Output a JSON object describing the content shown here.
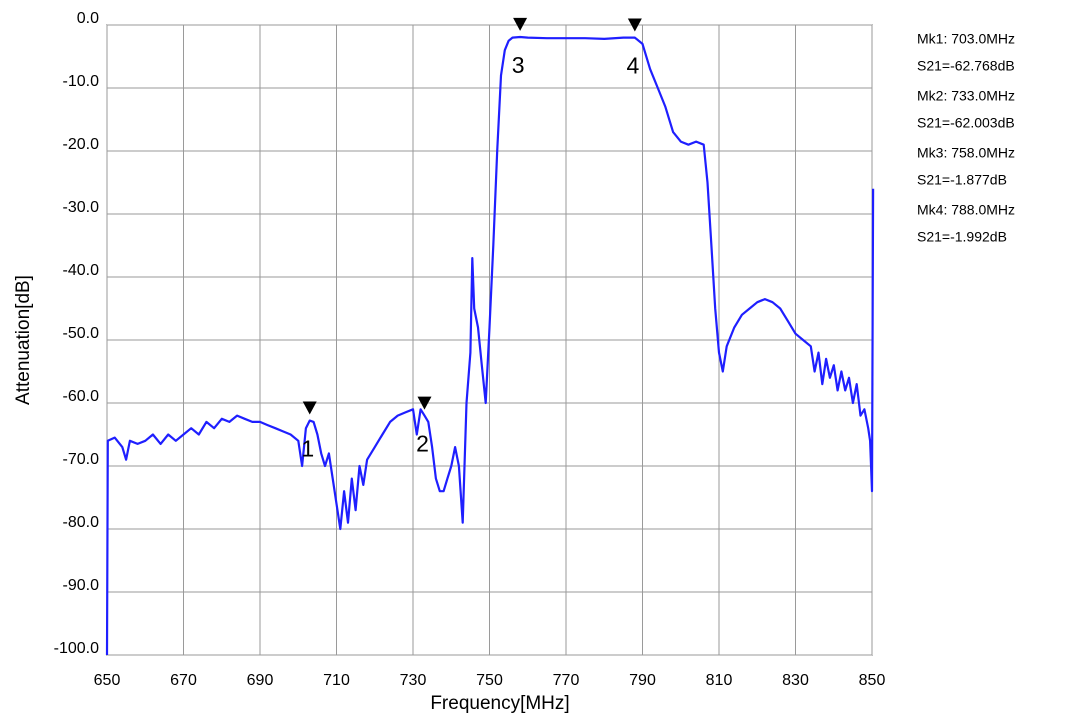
{
  "chart_data": {
    "type": "line",
    "xlabel": "Frequency[MHz]",
    "ylabel": "Attenuation[dB]",
    "xlim": [
      650,
      850
    ],
    "ylim": [
      -100,
      0
    ],
    "xticks": [
      650,
      670,
      690,
      710,
      730,
      750,
      770,
      790,
      810,
      830,
      850
    ],
    "yticks": [
      {
        "value": 0,
        "label": "0.0"
      },
      {
        "value": -10,
        "label": "-10.0"
      },
      {
        "value": -20,
        "label": "-20.0"
      },
      {
        "value": -30,
        "label": "-30.0"
      },
      {
        "value": -40,
        "label": "-40.0"
      },
      {
        "value": -50,
        "label": "-50.0"
      },
      {
        "value": -60,
        "label": "-60.0"
      },
      {
        "value": -70,
        "label": "-70.0"
      },
      {
        "value": -80,
        "label": "-80.0"
      },
      {
        "value": -90,
        "label": "-90.0"
      },
      {
        "value": -100,
        "label": "-100.0"
      }
    ],
    "grid": true,
    "x": [
      650,
      650.2,
      652,
      654,
      655,
      656,
      658,
      660,
      662,
      664,
      666,
      668,
      670,
      672,
      674,
      676,
      678,
      680,
      682,
      684,
      686,
      688,
      690,
      692,
      694,
      696,
      698,
      700,
      701,
      702,
      703,
      704,
      705,
      706,
      707,
      708,
      709,
      710,
      711,
      712,
      713,
      714,
      715,
      716,
      717,
      718,
      720,
      722,
      724,
      726,
      728,
      730,
      731,
      732,
      733,
      734,
      735,
      736,
      737,
      738,
      739,
      740,
      741,
      742,
      743,
      744,
      745,
      745.5,
      746,
      747,
      748,
      749,
      750,
      751,
      752,
      753,
      754,
      755,
      756,
      758,
      760,
      765,
      770,
      775,
      780,
      785,
      788,
      790,
      792,
      794,
      796,
      798,
      800,
      802,
      804,
      806,
      807,
      808,
      809,
      810,
      811,
      812,
      814,
      816,
      818,
      820,
      822,
      824,
      826,
      828,
      830,
      832,
      834,
      835,
      836,
      837,
      838,
      839,
      840,
      841,
      842,
      843,
      844,
      845,
      846,
      847,
      848,
      849,
      849.5,
      850,
      850.3
    ],
    "series": [
      {
        "name": "S21",
        "color": "#1f1fff",
        "values": [
          -100,
          -66,
          -65.5,
          -67,
          -69,
          -66,
          -66.5,
          -66,
          -65,
          -66.5,
          -65,
          -66,
          -65,
          -64,
          -65,
          -63,
          -64,
          -62.5,
          -63,
          -62,
          -62.5,
          -63,
          -63,
          -63.5,
          -64,
          -64.5,
          -65,
          -66,
          -70,
          -64,
          -62.8,
          -63,
          -65,
          -68,
          -70,
          -68,
          -72,
          -76,
          -80,
          -74,
          -79,
          -72,
          -77,
          -70,
          -73,
          -69,
          -67,
          -65,
          -63,
          -62,
          -61.5,
          -61,
          -65,
          -61,
          -62,
          -63,
          -67,
          -72,
          -74,
          -74,
          -72,
          -70,
          -67,
          -70,
          -79,
          -60,
          -52,
          -37,
          -45,
          -48,
          -54,
          -60,
          -48,
          -35,
          -20,
          -8,
          -4,
          -2.5,
          -2,
          -1.9,
          -2,
          -2.1,
          -2.1,
          -2.1,
          -2.2,
          -2,
          -2,
          -3,
          -7,
          -10,
          -13,
          -17,
          -18.5,
          -19,
          -18.5,
          -19,
          -25,
          -35,
          -45,
          -52,
          -55,
          -51,
          -48,
          -46,
          -45,
          -44,
          -43.5,
          -44,
          -45,
          -47,
          -49,
          -50,
          -51,
          -55,
          -52,
          -57,
          -53,
          -56,
          -54,
          -58,
          -55,
          -58,
          -56,
          -60,
          -57,
          -62,
          -61,
          -64,
          -66,
          -74,
          -26
        ]
      }
    ],
    "markers": [
      {
        "label": "1",
        "x": 703,
        "y": -62.768,
        "freq_text": "Mk1:  703.0MHz",
        "value_text": "S21=-62.768dB"
      },
      {
        "label": "2",
        "x": 733,
        "y": -62.003,
        "freq_text": "Mk2:  733.0MHz",
        "value_text": "S21=-62.003dB"
      },
      {
        "label": "3",
        "x": 758,
        "y": -1.877,
        "freq_text": "Mk3:  758.0MHz",
        "value_text": "S21=-1.877dB"
      },
      {
        "label": "4",
        "x": 788,
        "y": -1.992,
        "freq_text": "Mk4:  788.0MHz",
        "value_text": "S21=-1.992dB"
      }
    ]
  }
}
